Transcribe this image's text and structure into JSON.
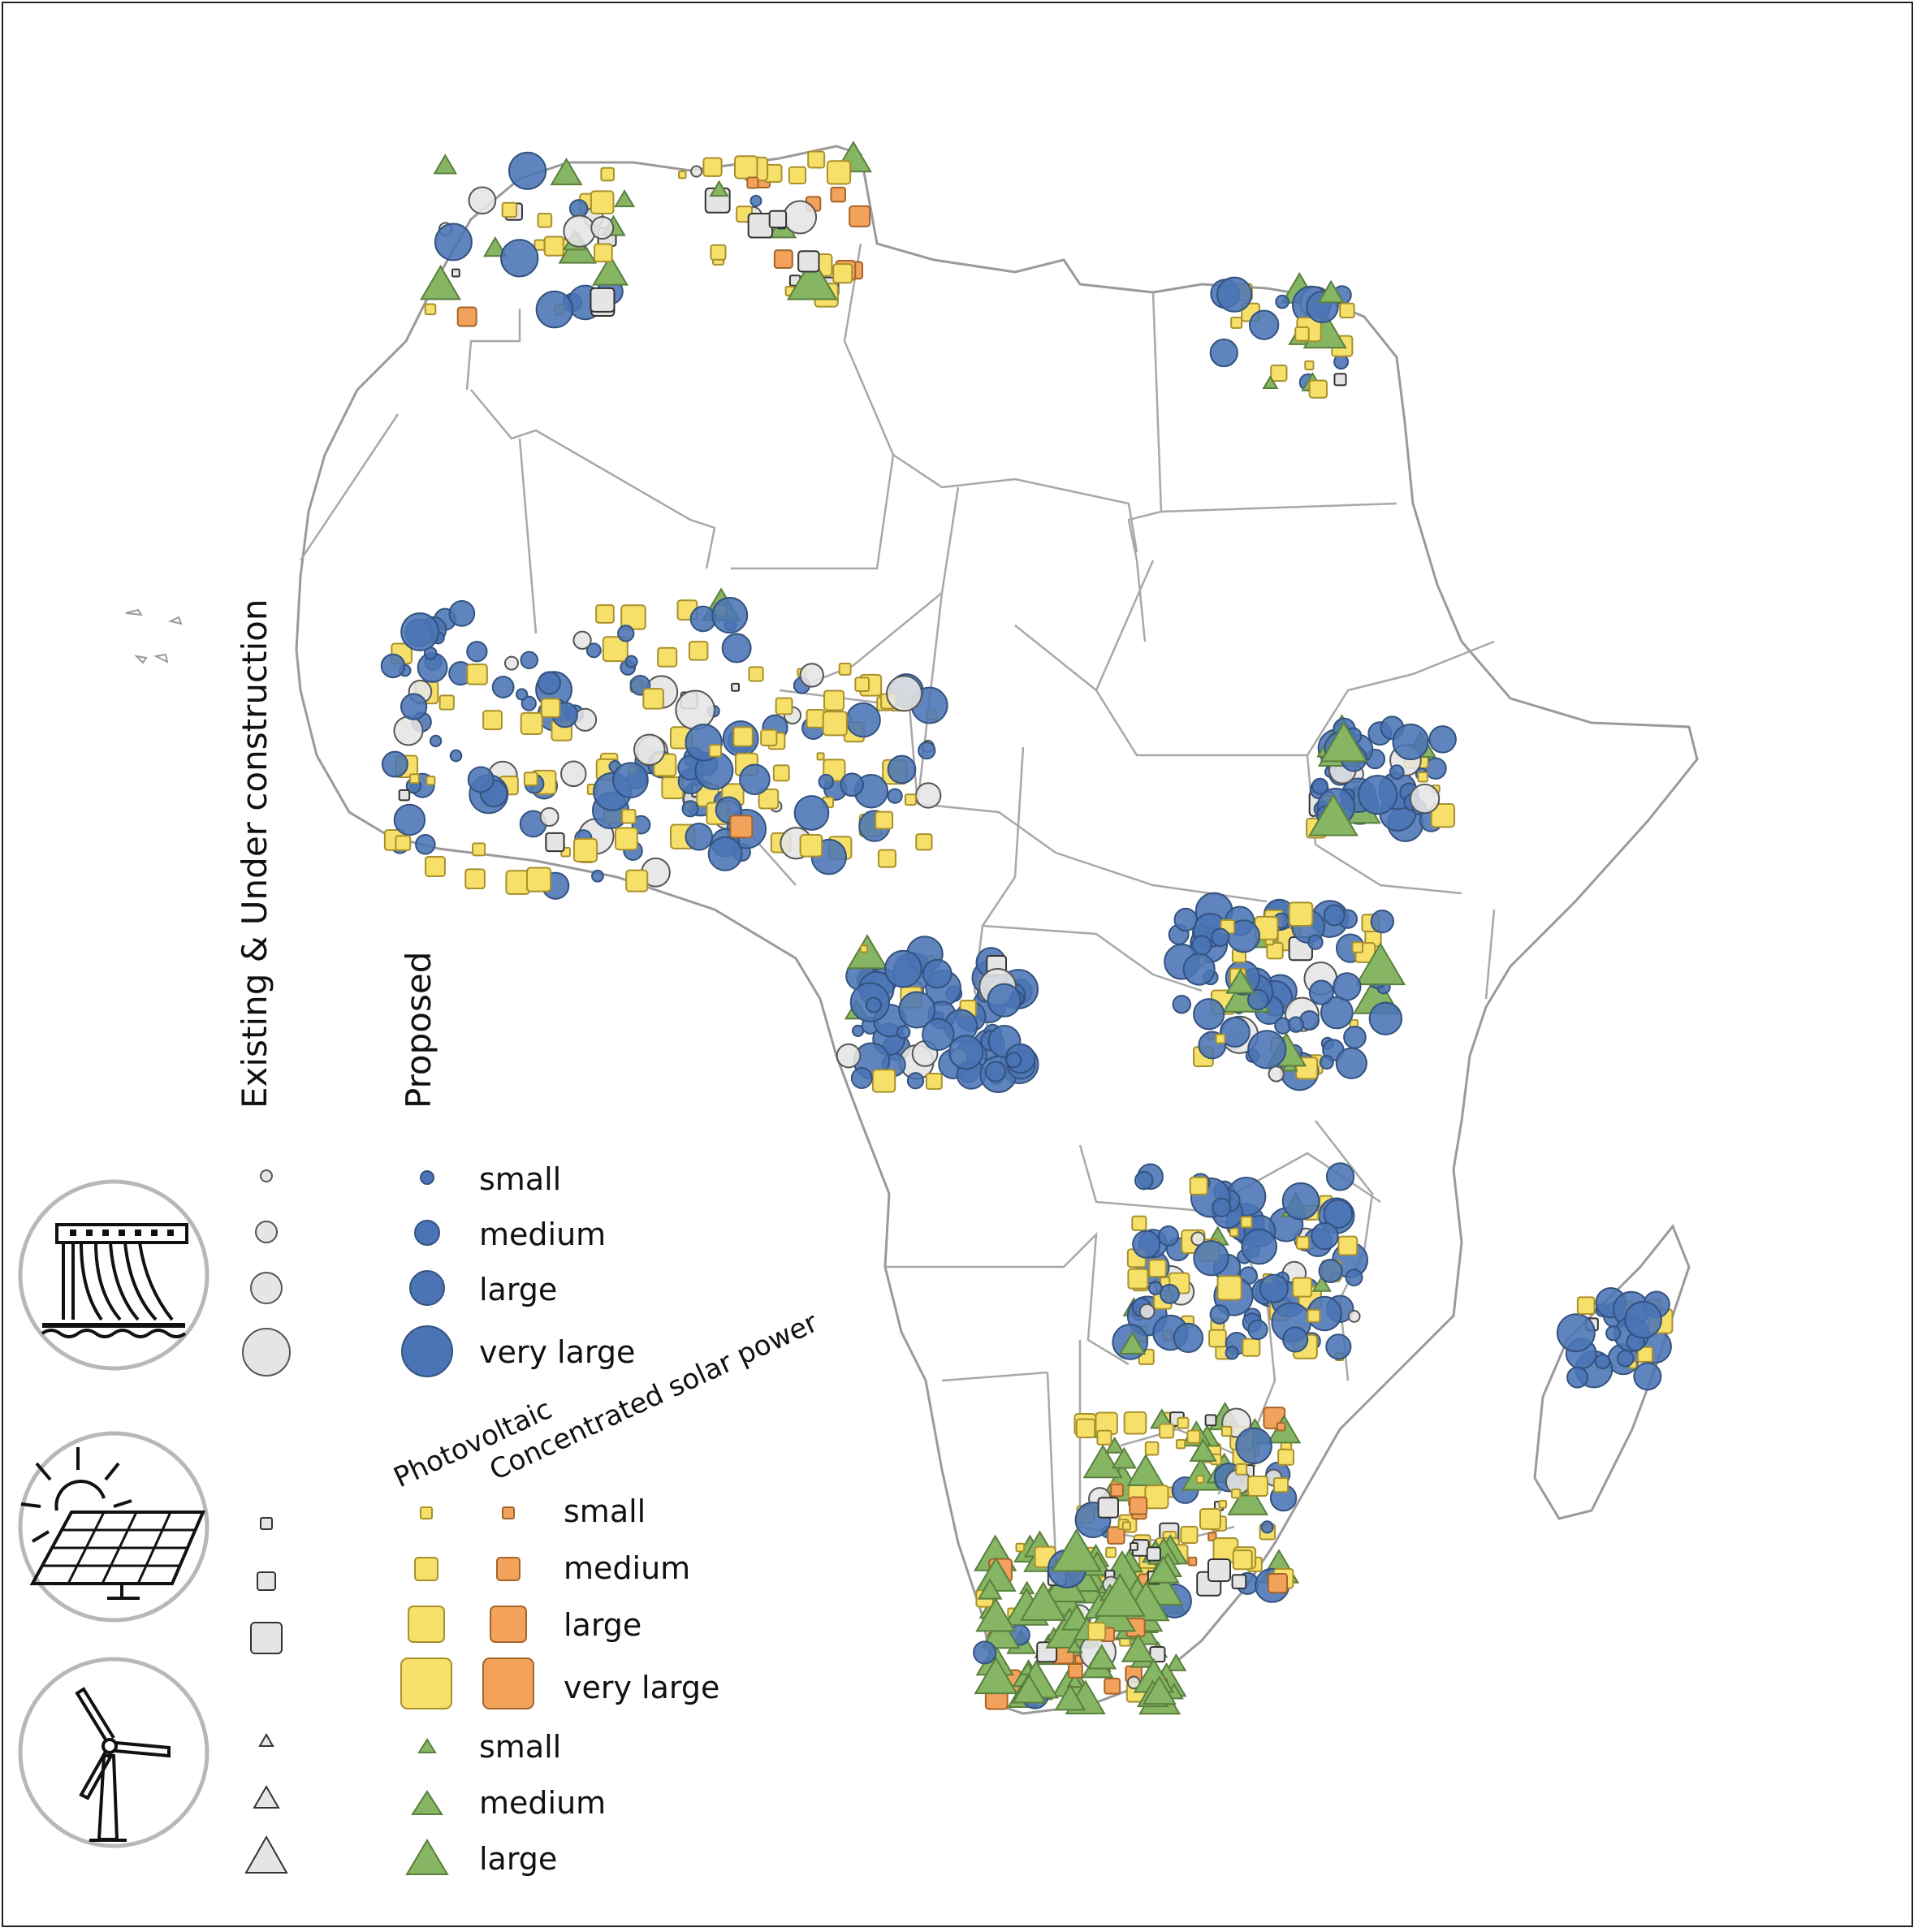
{
  "legend": {
    "status_headers": {
      "existing": "Existing & Under construction",
      "proposed": "Proposed"
    },
    "hydro": {
      "icon": "hydropower-dam-icon",
      "sizes": [
        "small",
        "medium",
        "large",
        "very large"
      ],
      "existing_color": "#e5e5e5",
      "proposed_color": "#4a74b5"
    },
    "solar": {
      "icon": "solar-panel-icon",
      "types": [
        "Photovoltaic",
        "Concentrated solar power"
      ],
      "sizes": [
        "small",
        "medium",
        "large",
        "very large"
      ],
      "pv_color": "#f7e06a",
      "csp_color": "#f2a25a",
      "existing_color": "#e5e5e5"
    },
    "wind": {
      "icon": "wind-turbine-icon",
      "sizes": [
        "small",
        "medium",
        "large"
      ],
      "existing_color": "#e5e5e5",
      "proposed_color": "#86b563"
    }
  }
}
